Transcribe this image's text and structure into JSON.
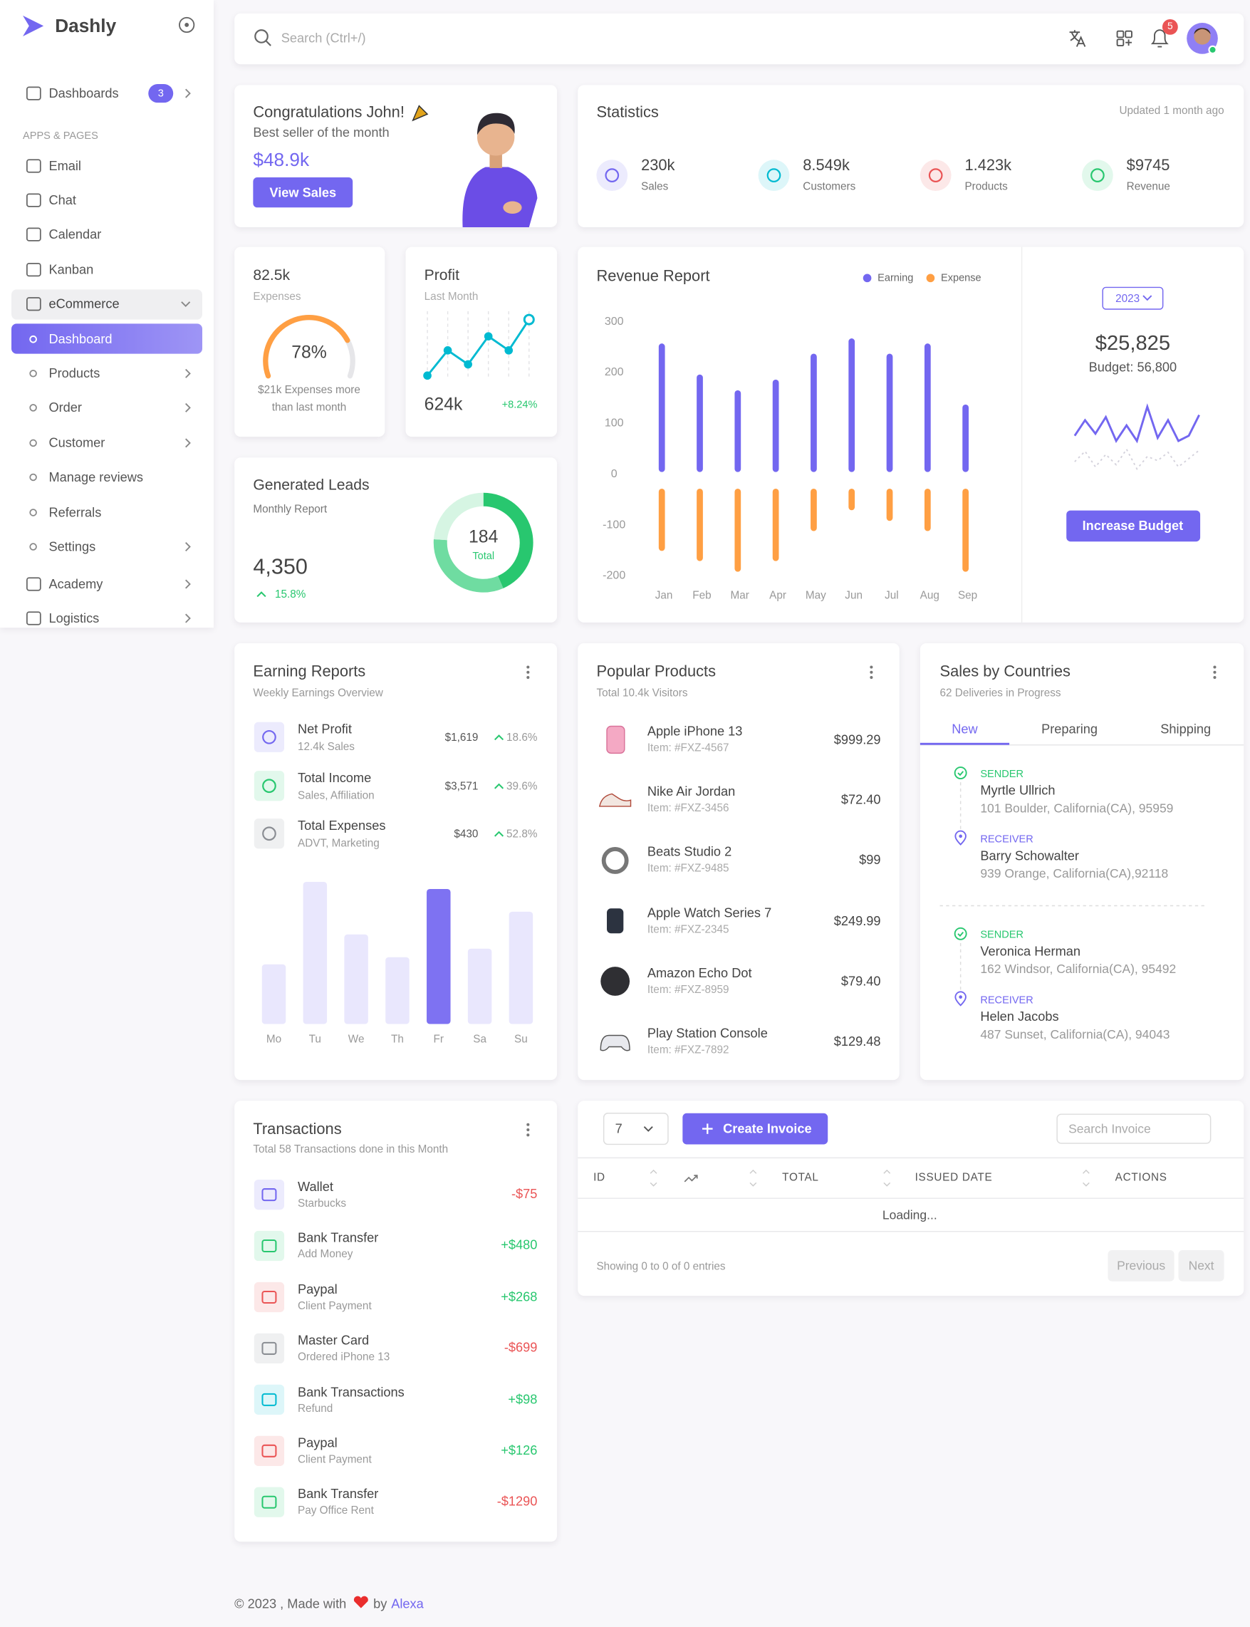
{
  "sidebar": {
    "brand": "Dashly",
    "dashboards": {
      "label": "Dashboards",
      "badge": "3"
    },
    "section": "APPS & PAGES",
    "apps": [
      "Email",
      "Chat",
      "Calendar",
      "Kanban"
    ],
    "ecommerce": "eCommerce",
    "active": "Dashboard",
    "submenu": [
      {
        "label": "Products",
        "expandable": true
      },
      {
        "label": "Order",
        "expandable": true
      },
      {
        "label": "Customer",
        "expandable": true
      },
      {
        "label": "Manage reviews",
        "expandable": false
      },
      {
        "label": "Referrals",
        "expandable": false
      },
      {
        "label": "Settings",
        "expandable": true
      }
    ],
    "more": [
      "Academy",
      "Logistics"
    ]
  },
  "topbar": {
    "search": "Search (Ctrl+/)",
    "notifications": "5"
  },
  "congrats": {
    "title": "Congratulations John!",
    "subtitle": "Best seller of the month",
    "amount": "$48.9k",
    "button": "View Sales"
  },
  "statistics": {
    "title": "Statistics",
    "updated": "Updated 1 month ago",
    "items": [
      {
        "value": "230k",
        "label": "Sales",
        "color": "#7367f0"
      },
      {
        "value": "8.549k",
        "label": "Customers",
        "color": "#00bad1"
      },
      {
        "value": "1.423k",
        "label": "Products",
        "color": "#ea5455"
      },
      {
        "value": "$9745",
        "label": "Revenue",
        "color": "#28c76f"
      }
    ]
  },
  "expenses": {
    "value": "82.5k",
    "label": "Expenses",
    "gauge": {
      "type": "gauge",
      "values": [
        78
      ],
      "value_labels": [
        "78%"
      ],
      "color": "#ff9f43"
    },
    "note": "$21k Expenses more than last month"
  },
  "profit": {
    "title": "Profit",
    "subtitle": "Last Month",
    "chart": {
      "type": "line",
      "values": [
        0,
        45,
        20,
        70,
        45,
        100
      ],
      "color": "#00bad1"
    },
    "value": "624k",
    "change": "+8.24%"
  },
  "leads": {
    "title": "Generated Leads",
    "subtitle": "Monthly Report",
    "value": "4,350",
    "change": "15.8%",
    "donut": {
      "type": "pie",
      "values": [
        80,
        60,
        44
      ],
      "colors": [
        "#28c76f",
        "#6fdca1",
        "#d6f5e3"
      ],
      "total": "184",
      "total_label": "Total"
    }
  },
  "revenue": {
    "type": "bar",
    "title": "Revenue Report",
    "categories": [
      "Jan",
      "Feb",
      "Mar",
      "Apr",
      "May",
      "Jun",
      "Jul",
      "Aug",
      "Sep"
    ],
    "series": [
      {
        "name": "Earning",
        "color": "#7367f0",
        "values": [
          257,
          196,
          165,
          186,
          237,
          267,
          237,
          257,
          137
        ]
      },
      {
        "name": "Expense",
        "color": "#ff9f43",
        "values": [
          -151,
          -171,
          -192,
          -171,
          -112,
          -71,
          -92,
          -112,
          -192
        ]
      }
    ],
    "ylim": [
      -200,
      300
    ],
    "yticks": [
      300,
      200,
      100,
      0,
      -100,
      -200
    ]
  },
  "budget": {
    "year": "2023",
    "amount": "$25,825",
    "budget": "Budget: 56,800",
    "button": "Increase Budget",
    "chart": {
      "type": "line",
      "series": [
        {
          "color": "#7367f0",
          "values": [
            10,
            25,
            12,
            28,
            5,
            20,
            5,
            38,
            8,
            25,
            5,
            10,
            30
          ]
        },
        {
          "color": "#d4d2dc",
          "values": [
            -15,
            -5,
            -20,
            -8,
            -18,
            -3,
            -22,
            -10,
            -14,
            -6,
            -20,
            -12,
            -4
          ]
        }
      ]
    }
  },
  "earning": {
    "title": "Earning Reports",
    "subtitle": "Weekly Earnings Overview",
    "items": [
      {
        "name": "Net Profit",
        "sub": "12.4k Sales",
        "amount": "$1,619",
        "change": "18.6%",
        "color": "#7367f0"
      },
      {
        "name": "Total Income",
        "sub": "Sales, Affiliation",
        "amount": "$3,571",
        "change": "39.6%",
        "color": "#28c76f"
      },
      {
        "name": "Total Expenses",
        "sub": "ADVT, Marketing",
        "amount": "$430",
        "change": "52.8%",
        "color": "#8a8d93"
      }
    ],
    "chart": {
      "type": "bar",
      "categories": [
        "Mo",
        "Tu",
        "We",
        "Th",
        "Fr",
        "Sa",
        "Su"
      ],
      "values": [
        42,
        100,
        63,
        47,
        95,
        53,
        79
      ],
      "colors": [
        "#e9e7fd",
        "#e9e7fd",
        "#e9e7fd",
        "#e9e7fd",
        "#7e72f2",
        "#e9e7fd",
        "#e9e7fd"
      ]
    }
  },
  "products": {
    "title": "Popular Products",
    "subtitle": "Total 10.4k Visitors",
    "items": [
      {
        "name": "Apple iPhone 13",
        "item": "Item: #FXZ-4567",
        "price": "$999.29"
      },
      {
        "name": "Nike Air Jordan",
        "item": "Item: #FXZ-3456",
        "price": "$72.40"
      },
      {
        "name": "Beats Studio 2",
        "item": "Item: #FXZ-9485",
        "price": "$99"
      },
      {
        "name": "Apple Watch Series 7",
        "item": "Item: #FXZ-2345",
        "price": "$249.99"
      },
      {
        "name": "Amazon Echo Dot",
        "item": "Item: #FXZ-8959",
        "price": "$79.40"
      },
      {
        "name": "Play Station Console",
        "item": "Item: #FXZ-7892",
        "price": "$129.48"
      }
    ]
  },
  "countries": {
    "title": "Sales by Countries",
    "subtitle": "62 Deliveries in Progress",
    "tabs": [
      "New",
      "Preparing",
      "Shipping"
    ],
    "shipments": [
      {
        "sender": {
          "role": "SENDER",
          "name": "Myrtle Ullrich",
          "address": "101 Boulder, California(CA), 95959"
        },
        "receiver": {
          "role": "RECEIVER",
          "name": "Barry Schowalter",
          "address": "939 Orange, California(CA),92118"
        }
      },
      {
        "sender": {
          "role": "SENDER",
          "name": "Veronica Herman",
          "address": "162 Windsor, California(CA), 95492"
        },
        "receiver": {
          "role": "RECEIVER",
          "name": "Helen Jacobs",
          "address": "487 Sunset, California(CA), 94043"
        }
      }
    ]
  },
  "transactions": {
    "title": "Transactions",
    "subtitle": "Total 58 Transactions done in this Month",
    "items": [
      {
        "name": "Wallet",
        "sub": "Starbucks",
        "amount": "-$75",
        "color": "#7367f0"
      },
      {
        "name": "Bank Transfer",
        "sub": "Add Money",
        "amount": "+$480",
        "color": "#28c76f"
      },
      {
        "name": "Paypal",
        "sub": "Client Payment",
        "amount": "+$268",
        "color": "#ea5455"
      },
      {
        "name": "Master Card",
        "sub": "Ordered iPhone 13",
        "amount": "-$699",
        "color": "#8a8d93"
      },
      {
        "name": "Bank Transactions",
        "sub": "Refund",
        "amount": "+$98",
        "color": "#00bad1"
      },
      {
        "name": "Paypal",
        "sub": "Client Payment",
        "amount": "+$126",
        "color": "#ea5455"
      },
      {
        "name": "Bank Transfer",
        "sub": "Pay Office Rent",
        "amount": "-$1290",
        "color": "#28c76f"
      }
    ]
  },
  "invoice": {
    "page_size": "7",
    "create": "Create Invoice",
    "search": "Search Invoice",
    "columns": [
      "ID",
      "TOTAL",
      "ISSUED DATE",
      "ACTIONS"
    ],
    "status": "Loading...",
    "info": "Showing 0 to 0 of 0 entries",
    "prev": "Previous",
    "next": "Next"
  },
  "footer": {
    "made": "© 2023 , Made with",
    "by": "by",
    "author": "Alexa"
  }
}
